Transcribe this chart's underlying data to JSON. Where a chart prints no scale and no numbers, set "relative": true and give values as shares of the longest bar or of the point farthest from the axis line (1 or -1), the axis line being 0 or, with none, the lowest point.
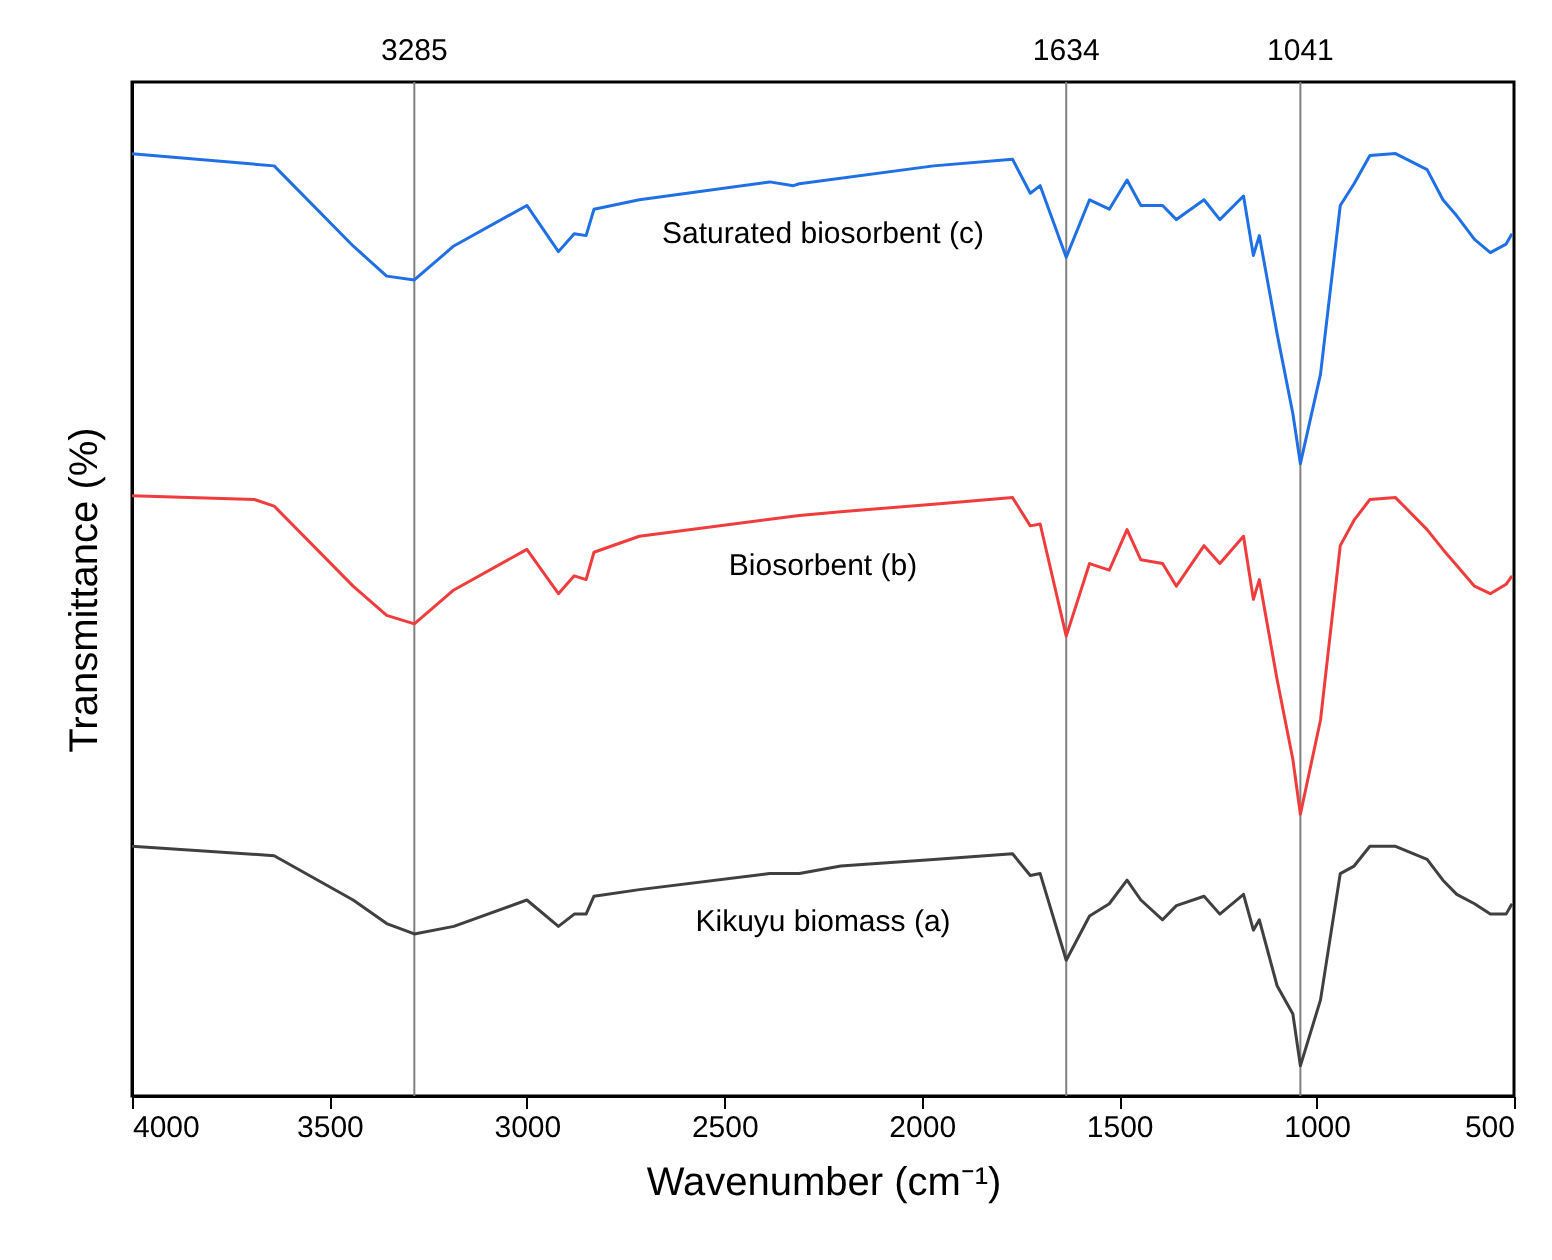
{
  "chart_data": {
    "type": "line",
    "relative": true,
    "xlabel": "Wavenumber (cm⁻¹)",
    "ylabel": "Transmittance (%)",
    "xlim": [
      4000,
      500
    ],
    "xticks": [
      4000,
      3500,
      3000,
      2500,
      2000,
      1500,
      1000,
      500
    ],
    "series": [
      {
        "name": "Saturated biosorbent (c)",
        "color": "#1f6fe5",
        "x": [
          4000,
          3640,
          3440,
          3355,
          3285,
          3185,
          3000,
          2920,
          2880,
          2850,
          2830,
          2715,
          2385,
          2325,
          2310,
          1970,
          1770,
          1725,
          1700,
          1634,
          1575,
          1525,
          1480,
          1445,
          1390,
          1355,
          1285,
          1245,
          1185,
          1160,
          1145,
          1100,
          1060,
          1041,
          990,
          940,
          905,
          865,
          800,
          720,
          680,
          645,
          600,
          560,
          520,
          505
        ],
        "values": [
          1.0,
          0.987,
          0.902,
          0.87,
          0.866,
          0.902,
          0.945,
          0.896,
          0.915,
          0.913,
          0.941,
          0.951,
          0.97,
          0.966,
          0.968,
          0.987,
          0.994,
          0.958,
          0.966,
          0.89,
          0.951,
          0.941,
          0.972,
          0.945,
          0.945,
          0.93,
          0.951,
          0.93,
          0.955,
          0.892,
          0.913,
          0.809,
          0.724,
          0.671,
          0.766,
          0.945,
          0.968,
          0.998,
          1.0,
          0.983,
          0.951,
          0.934,
          0.909,
          0.895,
          0.904,
          0.915
        ]
      },
      {
        "name": "Biosorbent (b)",
        "color": "#f03c3c",
        "x": [
          4000,
          3690,
          3640,
          3440,
          3355,
          3285,
          3185,
          3000,
          2920,
          2880,
          2850,
          2830,
          2715,
          2310,
          2205,
          1970,
          1770,
          1725,
          1700,
          1634,
          1575,
          1525,
          1480,
          1445,
          1390,
          1355,
          1285,
          1245,
          1185,
          1160,
          1145,
          1100,
          1060,
          1041,
          990,
          940,
          905,
          865,
          800,
          720,
          680,
          645,
          600,
          560,
          520,
          505
        ],
        "values": [
          0.637,
          0.633,
          0.626,
          0.541,
          0.51,
          0.501,
          0.537,
          0.58,
          0.533,
          0.552,
          0.548,
          0.577,
          0.594,
          0.616,
          0.62,
          0.628,
          0.635,
          0.605,
          0.607,
          0.488,
          0.565,
          0.558,
          0.601,
          0.569,
          0.565,
          0.541,
          0.584,
          0.565,
          0.594,
          0.527,
          0.548,
          0.442,
          0.357,
          0.299,
          0.399,
          0.584,
          0.611,
          0.633,
          0.635,
          0.601,
          0.58,
          0.563,
          0.541,
          0.533,
          0.543,
          0.552
        ]
      },
      {
        "name": "Kikuyu biomass (a)",
        "color": "#404040",
        "x": [
          4000,
          3640,
          3440,
          3355,
          3285,
          3185,
          3000,
          2920,
          2880,
          2850,
          2830,
          2715,
          2385,
          2310,
          2205,
          1970,
          1770,
          1725,
          1700,
          1634,
          1575,
          1525,
          1480,
          1445,
          1390,
          1355,
          1285,
          1245,
          1185,
          1160,
          1145,
          1100,
          1060,
          1041,
          990,
          940,
          905,
          865,
          800,
          720,
          680,
          645,
          600,
          560,
          520,
          505
        ],
        "values": [
          0.265,
          0.255,
          0.208,
          0.183,
          0.172,
          0.18,
          0.208,
          0.18,
          0.193,
          0.193,
          0.212,
          0.219,
          0.236,
          0.236,
          0.244,
          0.251,
          0.257,
          0.234,
          0.236,
          0.144,
          0.191,
          0.204,
          0.229,
          0.208,
          0.187,
          0.202,
          0.212,
          0.193,
          0.214,
          0.176,
          0.187,
          0.117,
          0.087,
          0.032,
          0.102,
          0.236,
          0.244,
          0.265,
          0.265,
          0.251,
          0.229,
          0.214,
          0.204,
          0.193,
          0.193,
          0.204
        ]
      }
    ],
    "ref_lines": [
      {
        "axis": "x",
        "value": 3285,
        "label": "3285",
        "color": "#808080"
      },
      {
        "axis": "x",
        "value": 1634,
        "label": "1634",
        "color": "#808080"
      },
      {
        "axis": "x",
        "value": 1041,
        "label": "1041",
        "color": "#808080"
      }
    ]
  }
}
